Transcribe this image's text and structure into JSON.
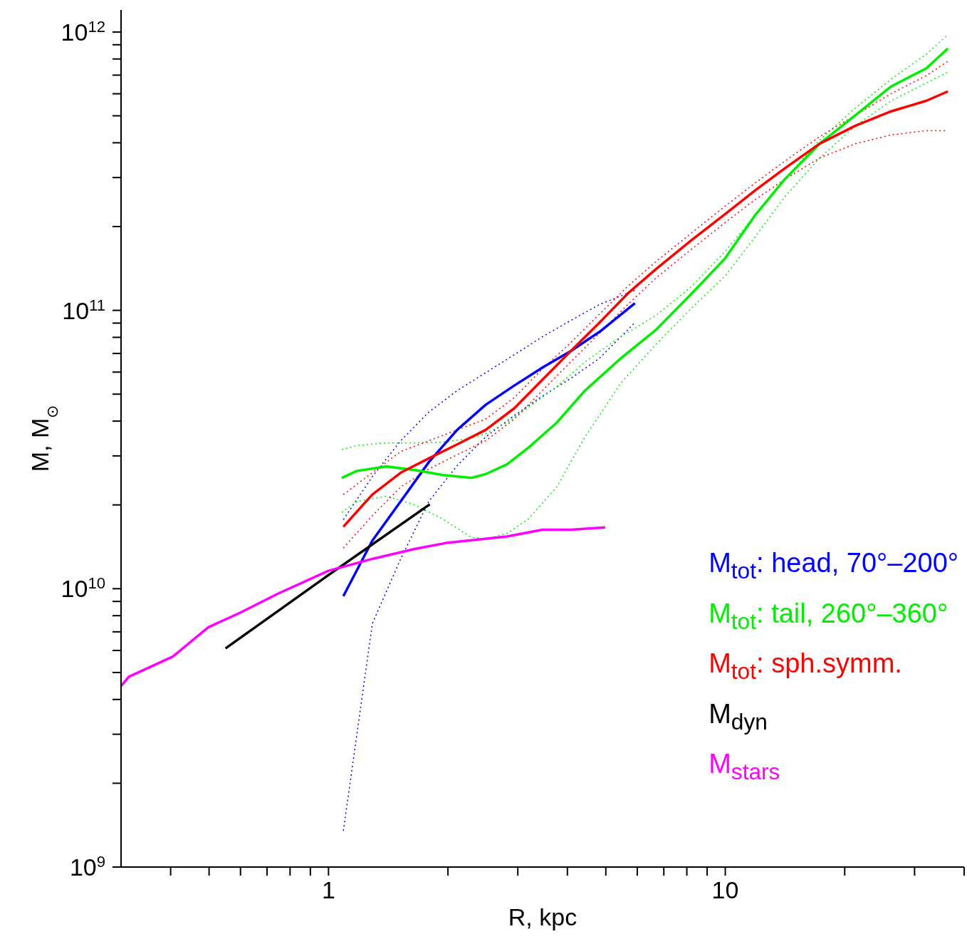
{
  "chart_data": {
    "type": "line",
    "xlabel": "R, kpc",
    "ylabel": "M, M$_{⊙}$",
    "log": "xy",
    "xlim": [
      0.3,
      40
    ],
    "ylim": [
      1000000000.0,
      1200000000000.0
    ],
    "xticks": [
      {
        "value": 0.4,
        "label": null
      },
      {
        "value": 0.5,
        "label": null
      },
      {
        "value": 0.6,
        "label": null
      },
      {
        "value": 0.7,
        "label": null
      },
      {
        "value": 0.8,
        "label": null
      },
      {
        "value": 0.9,
        "label": null
      },
      1,
      {
        "value": 2,
        "label": null
      },
      {
        "value": 3,
        "label": null
      },
      {
        "value": 4,
        "label": null
      },
      {
        "value": 5,
        "label": null
      },
      {
        "value": 6,
        "label": null
      },
      {
        "value": 7,
        "label": null
      },
      {
        "value": 8,
        "label": null
      },
      {
        "value": 9,
        "label": null
      },
      10,
      {
        "value": 20,
        "label": null
      },
      {
        "value": 30,
        "label": null
      },
      {
        "value": 40,
        "label": null
      }
    ],
    "yticks": [
      {
        "value": 1000000000.0,
        "label": "10$^{9}$"
      },
      {
        "value": 2000000000.0,
        "label": null
      },
      {
        "value": 3000000000.0,
        "label": null
      },
      {
        "value": 4000000000.0,
        "label": null
      },
      {
        "value": 5000000000.0,
        "label": null
      },
      {
        "value": 6000000000.0,
        "label": null
      },
      {
        "value": 7000000000.0,
        "label": null
      },
      {
        "value": 8000000000.0,
        "label": null
      },
      {
        "value": 9000000000.0,
        "label": null
      },
      {
        "value": 10000000000.0,
        "label": "10$^{10}$"
      },
      {
        "value": 20000000000.0,
        "label": null
      },
      {
        "value": 30000000000.0,
        "label": null
      },
      {
        "value": 40000000000.0,
        "label": null
      },
      {
        "value": 50000000000.0,
        "label": null
      },
      {
        "value": 60000000000.0,
        "label": null
      },
      {
        "value": 70000000000.0,
        "label": null
      },
      {
        "value": 80000000000.0,
        "label": null
      },
      {
        "value": 90000000000.0,
        "label": null
      },
      {
        "value": 100000000000.0,
        "label": "10$^{11}$"
      },
      {
        "value": 200000000000.0,
        "label": null
      },
      {
        "value": 300000000000.0,
        "label": null
      },
      {
        "value": 400000000000.0,
        "label": null
      },
      {
        "value": 500000000000.0,
        "label": null
      },
      {
        "value": 600000000000.0,
        "label": null
      },
      {
        "value": 700000000000.0,
        "label": null
      },
      {
        "value": 800000000000.0,
        "label": null
      },
      {
        "value": 900000000000.0,
        "label": null
      },
      {
        "value": 1000000000000.0,
        "label": "10$^{12}$"
      }
    ],
    "legend": "bottom right",
    "marker": "none",
    "line_style": "solid",
    "series": [
      {
        "color": "#0000ff",
        "line_style": "dotted",
        "x": [
          1.09,
          1.29,
          1.52,
          1.79,
          2.11,
          2.49,
          2.94,
          3.46,
          4.08,
          4.82,
          5.92
        ],
        "values": [
          1350000000.0,
          7500000000.0,
          12800000000.0,
          20600000000.0,
          27700000000.0,
          35100000000.0,
          41900000000.0,
          49200000000.0,
          57000000000.0,
          67300000000.0,
          90400000000.0
        ]
      },
      {
        "color": "#0000ff",
        "line_style": "dotted",
        "x": [
          1.09,
          1.29,
          1.52,
          1.79,
          2.11,
          2.49,
          2.94,
          3.46,
          4.08,
          4.82,
          5.92
        ],
        "values": [
          17700000000.0,
          25300000000.0,
          34000000000.0,
          43100000000.0,
          51500000000.0,
          59700000000.0,
          69300000000.0,
          80400000000.0,
          92000000000.0,
          105000000000.0,
          118000000000.0
        ]
      },
      {
        "color": "#00ee00",
        "line_style": "dotted",
        "x": [
          1.08,
          1.18,
          1.4,
          1.65,
          1.94,
          2.29,
          2.49,
          2.82,
          3.19,
          3.76,
          4.43,
          5.45,
          6.7,
          8.23,
          10,
          11.9,
          14.1,
          17.3,
          21.3,
          26.2,
          32.1,
          36.4
        ],
        "values": [
          18800000000.0,
          20600000000.0,
          21500000000.0,
          20000000000.0,
          17800000000.0,
          15300000000.0,
          15100000000.0,
          15800000000.0,
          17800000000.0,
          23200000000.0,
          35100000000.0,
          54700000000.0,
          75700000000.0,
          102000000000.0,
          133000000000.0,
          184000000000.0,
          255000000000.0,
          353000000000.0,
          461000000000.0,
          566000000000.0,
          656000000000.0,
          718000000000.0
        ]
      },
      {
        "color": "#00ee00",
        "line_style": "dotted",
        "x": [
          1.08,
          1.18,
          1.4,
          1.65,
          1.94,
          2.29,
          2.49,
          2.82,
          3.19,
          3.76,
          4.43,
          5.45,
          6.7,
          8.23,
          10,
          11.9,
          14.1,
          17.3,
          21.3,
          26.2,
          32.1,
          36.4
        ],
        "values": [
          31600000000.0,
          32700000000.0,
          33400000000.0,
          33400000000.0,
          33600000000.0,
          34700000000.0,
          36100000000.0,
          39500000000.0,
          44900000000.0,
          53100000000.0,
          65300000000.0,
          80400000000.0,
          96000000000.0,
          122000000000.0,
          163000000000.0,
          220000000000.0,
          295000000000.0,
          409000000000.0,
          534000000000.0,
          677000000000.0,
          832000000000.0,
          977000000000.0
        ]
      },
      {
        "color": "#ff0000",
        "line_style": "dotted",
        "x": [
          1.09,
          1.29,
          1.52,
          1.79,
          2.11,
          2.49,
          2.94,
          3.46,
          4.08,
          4.82,
          5.68,
          6.7,
          8.23,
          10,
          11.9,
          14.1,
          17.3,
          21.3,
          26.2,
          32.1,
          36.4
        ],
        "values": [
          14000000000.0,
          18300000000.0,
          23200000000.0,
          26900000000.0,
          30300000000.0,
          34000000000.0,
          40700000000.0,
          51500000000.0,
          65300000000.0,
          82800000000.0,
          105000000000.0,
          131000000000.0,
          166000000000.0,
          207000000000.0,
          250000000000.0,
          295000000000.0,
          353000000000.0,
          397000000000.0,
          427000000000.0,
          442000000000.0,
          442000000000.0
        ]
      },
      {
        "color": "#ff0000",
        "line_style": "dotted",
        "x": [
          1.09,
          1.29,
          1.52,
          1.79,
          2.11,
          2.49,
          2.94,
          3.46,
          4.08,
          4.82,
          5.68,
          6.7,
          8.23,
          10,
          11.9,
          14.1,
          17.3,
          21.3,
          26.2,
          32.1,
          36.4
        ],
        "values": [
          21800000000.0,
          26100000000.0,
          31100000000.0,
          34000000000.0,
          37200000000.0,
          40700000000.0,
          48600000000.0,
          61600000000.0,
          76600000000.0,
          97000000000.0,
          122000000000.0,
          150000000000.0,
          190000000000.0,
          237000000000.0,
          287000000000.0,
          343000000000.0,
          421000000000.0,
          503000000000.0,
          601000000000.0,
          697000000000.0,
          785000000000.0
        ]
      },
      {
        "name": "M$_{tot}$: head, 70°–200°",
        "color": "#0000ff",
        "x": [
          1.09,
          1.29,
          1.52,
          1.79,
          2.11,
          2.49,
          2.94,
          3.46,
          4.08,
          4.82,
          5.92
        ],
        "values": [
          9400000000.0,
          14900000000.0,
          20600000000.0,
          28500000000.0,
          37200000000.0,
          45800000000.0,
          53700000000.0,
          62300000000.0,
          71400000000.0,
          83700000000.0,
          106000000000.0
        ]
      },
      {
        "name": "M$_{tot}$: tail, 260°–360°",
        "color": "#00ee00",
        "x": [
          1.08,
          1.18,
          1.4,
          1.65,
          1.94,
          2.29,
          2.49,
          2.82,
          3.19,
          3.76,
          4.43,
          5.45,
          6.7,
          8.23,
          10,
          11.9,
          14.1,
          17.3,
          21.3,
          26.2,
          32.1,
          36.4
        ],
        "values": [
          25000000000.0,
          26500000000.0,
          27500000000.0,
          26700000000.0,
          25600000000.0,
          25000000000.0,
          25800000000.0,
          28000000000.0,
          32100000000.0,
          39500000000.0,
          51500000000.0,
          67200000000.0,
          85300000000.0,
          115000000000.0,
          154000000000.0,
          220000000000.0,
          295000000000.0,
          397000000000.0,
          503000000000.0,
          638000000000.0,
          740000000000.0,
          873000000000.0
        ]
      },
      {
        "name": "M$_{tot}$: sph.symm.",
        "color": "#ff0000",
        "x": [
          1.09,
          1.29,
          1.52,
          1.79,
          2.11,
          2.49,
          2.94,
          3.46,
          4.08,
          4.82,
          5.68,
          6.7,
          8.23,
          10,
          11.9,
          14.1,
          17.3,
          21.3,
          26.2,
          32.1,
          36.4
        ],
        "values": [
          16700000000.0,
          21800000000.0,
          26100000000.0,
          29400000000.0,
          33000000000.0,
          37200000000.0,
          44500000000.0,
          56300000000.0,
          71400000000.0,
          90400000000.0,
          115000000000.0,
          141000000000.0,
          179000000000.0,
          222000000000.0,
          270000000000.0,
          323000000000.0,
          397000000000.0,
          461000000000.0,
          519000000000.0,
          566000000000.0,
          612000000000.0
        ]
      },
      {
        "name": "M$_{dyn}$",
        "color": "#000000",
        "x": [
          0.55,
          1.0,
          1.8
        ],
        "values": [
          6100000000.0,
          11200000000.0,
          20100000000.0
        ]
      },
      {
        "name": "M$_{stars}$",
        "color": "#ff00ff",
        "x": [
          0.3,
          0.314,
          0.405,
          0.498,
          0.599,
          0.746,
          1.0,
          1.29,
          1.65,
          1.98,
          2.82,
          3.46,
          4.08,
          4.98
        ],
        "values": [
          4470000000.0,
          4830000000.0,
          5700000000.0,
          7270000000.0,
          8200000000.0,
          9600000000.0,
          11600000000.0,
          12800000000.0,
          13900000000.0,
          14600000000.0,
          15400000000.0,
          16300000000.0,
          16300000000.0,
          16600000000.0
        ]
      }
    ]
  }
}
